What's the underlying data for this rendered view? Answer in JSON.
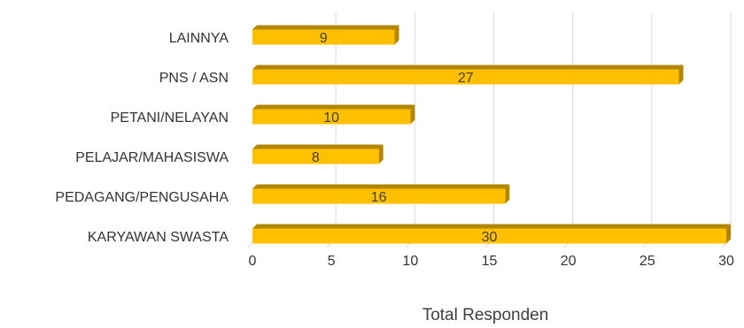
{
  "chart_data": {
    "type": "bar",
    "orientation": "horizontal",
    "categories": [
      "KARYAWAN SWASTA",
      "PEDAGANG/PENGUSAHA",
      "PELAJAR/MAHASISWA",
      "PETANI/NELAYAN",
      "PNS / ASN",
      "LAINNYA"
    ],
    "values": [
      30,
      16,
      8,
      10,
      27,
      9
    ],
    "xlabel": "Total Responden",
    "ylabel": "",
    "xlim": [
      0,
      30
    ],
    "xticks": [
      0,
      5,
      10,
      15,
      20,
      25,
      30
    ],
    "grid": true,
    "legend": "none",
    "bar_color": "#ffc000",
    "bar_shade_color": "#b38600",
    "grid_color": "#d9d9d9"
  }
}
